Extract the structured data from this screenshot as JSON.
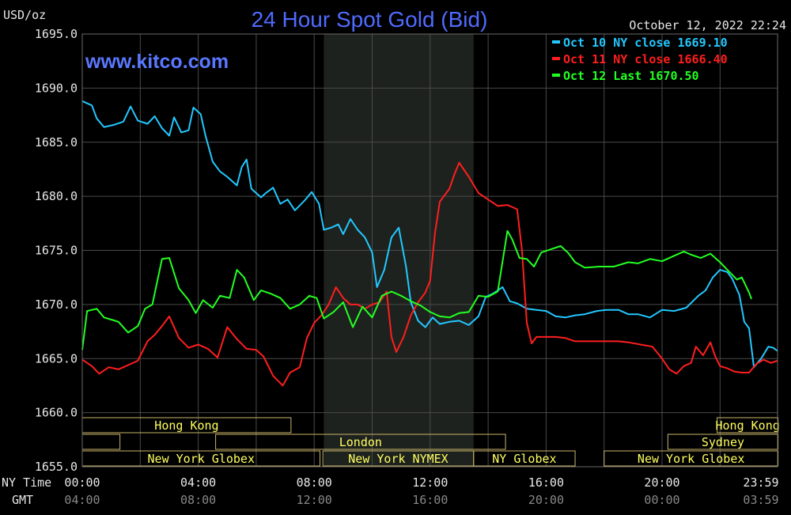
{
  "header": {
    "unit": "USD/oz",
    "title": "24 Hour Spot Gold (Bid)",
    "timestamp": "October 12, 2022 22:24",
    "watermark": "www.kitco.com"
  },
  "colors": {
    "background": "#000000",
    "grid": "#4a4a4a",
    "title": "#4f6bff",
    "watermark": "#5a78ff",
    "text": "#e8e8e8",
    "timezone": "#888888",
    "session_text": "#ffff60",
    "session_border": "#c8b46a",
    "shaded_region": "#1e221e"
  },
  "axes": {
    "row1_label": "NY Time",
    "row2_label": "GMT",
    "ny_ticks": [
      "00:00",
      "04:00",
      "08:00",
      "12:00",
      "16:00",
      "20:00",
      "23:59"
    ],
    "gmt_ticks": [
      "04:00",
      "08:00",
      "12:00",
      "16:00",
      "20:00",
      "00:00",
      "03:59"
    ],
    "y_ticks": [
      "1695.0",
      "1690.0",
      "1685.0",
      "1680.0",
      "1675.0",
      "1670.0",
      "1665.0",
      "1660.0",
      "1655.0"
    ]
  },
  "sessions": [
    {
      "label": "Hong Kong",
      "row": 0,
      "from": 0.0,
      "to": 7.2
    },
    {
      "label": "",
      "row": 1,
      "from": 0.0,
      "to": 1.3
    },
    {
      "label": "London",
      "row": 1,
      "from": 4.6,
      "to": 14.6
    },
    {
      "label": "New York Globex",
      "row": 2,
      "from": 0.0,
      "to": 8.2
    },
    {
      "label": "New York NYMEX",
      "row": 2,
      "from": 8.3,
      "to": 13.5
    },
    {
      "label": "NY Globex",
      "row": 2,
      "from": 13.5,
      "to": 17.0
    },
    {
      "label": "Hong Kong",
      "row": 0,
      "from": 21.9,
      "to": 24.0
    },
    {
      "label": "Sydney",
      "row": 1,
      "from": 20.2,
      "to": 24.0
    },
    {
      "label": "New York Globex",
      "row": 2,
      "from": 18.0,
      "to": 24.0
    }
  ],
  "chart_data": {
    "type": "line",
    "title": "24 Hour Spot Gold (Bid)",
    "ylabel": "USD/oz",
    "xlabel": "NY Time",
    "x_range": [
      "00:00",
      "23:59"
    ],
    "ylim": [
      1655.0,
      1695.0
    ],
    "grid": true,
    "shaded_region": [
      "08:20",
      "13:30"
    ],
    "legend_position": "top-right",
    "series": [
      {
        "name": "Oct 10 NY close 1669.10",
        "color": "#22c8ff",
        "points": [
          [
            "00:00",
            1688.8
          ],
          [
            "00:20",
            1688.4
          ],
          [
            "00:30",
            1687.2
          ],
          [
            "00:45",
            1686.4
          ],
          [
            "01:05",
            1686.6
          ],
          [
            "01:25",
            1686.9
          ],
          [
            "01:40",
            1688.3
          ],
          [
            "01:55",
            1687.0
          ],
          [
            "02:15",
            1686.7
          ],
          [
            "02:30",
            1687.4
          ],
          [
            "02:45",
            1686.3
          ],
          [
            "03:00",
            1685.6
          ],
          [
            "03:10",
            1687.3
          ],
          [
            "03:25",
            1685.9
          ],
          [
            "03:40",
            1686.1
          ],
          [
            "03:50",
            1688.2
          ],
          [
            "04:05",
            1687.6
          ],
          [
            "04:15",
            1685.6
          ],
          [
            "04:30",
            1683.2
          ],
          [
            "04:45",
            1682.3
          ],
          [
            "05:00",
            1681.8
          ],
          [
            "05:20",
            1681.0
          ],
          [
            "05:30",
            1682.7
          ],
          [
            "05:40",
            1683.4
          ],
          [
            "05:50",
            1680.7
          ],
          [
            "06:10",
            1679.9
          ],
          [
            "06:20",
            1680.3
          ],
          [
            "06:35",
            1680.8
          ],
          [
            "06:50",
            1679.3
          ],
          [
            "07:05",
            1679.7
          ],
          [
            "07:20",
            1678.7
          ],
          [
            "07:40",
            1679.6
          ],
          [
            "07:55",
            1680.4
          ],
          [
            "08:10",
            1679.3
          ],
          [
            "08:20",
            1676.9
          ],
          [
            "08:35",
            1677.1
          ],
          [
            "08:50",
            1677.4
          ],
          [
            "09:00",
            1676.5
          ],
          [
            "09:15",
            1677.9
          ],
          [
            "09:30",
            1676.9
          ],
          [
            "09:45",
            1676.2
          ],
          [
            "10:00",
            1674.8
          ],
          [
            "10:10",
            1671.6
          ],
          [
            "10:25",
            1673.2
          ],
          [
            "10:40",
            1676.2
          ],
          [
            "10:55",
            1677.1
          ],
          [
            "11:10",
            1673.5
          ],
          [
            "11:20",
            1670.2
          ],
          [
            "11:35",
            1668.5
          ],
          [
            "11:50",
            1667.9
          ],
          [
            "12:05",
            1668.8
          ],
          [
            "12:20",
            1668.2
          ],
          [
            "12:40",
            1668.4
          ],
          [
            "13:00",
            1668.5
          ],
          [
            "13:20",
            1668.1
          ],
          [
            "13:40",
            1668.9
          ],
          [
            "13:55",
            1670.7
          ],
          [
            "14:10",
            1671.0
          ],
          [
            "14:30",
            1671.6
          ],
          [
            "14:45",
            1670.3
          ],
          [
            "15:00",
            1670.1
          ],
          [
            "15:20",
            1669.6
          ],
          [
            "15:40",
            1669.5
          ],
          [
            "16:00",
            1669.4
          ],
          [
            "16:20",
            1668.9
          ],
          [
            "16:40",
            1668.8
          ],
          [
            "17:00",
            1669.0
          ],
          [
            "17:20",
            1669.1
          ],
          [
            "17:45",
            1669.4
          ],
          [
            "18:05",
            1669.5
          ],
          [
            "18:30",
            1669.5
          ],
          [
            "18:50",
            1669.1
          ],
          [
            "19:10",
            1669.1
          ],
          [
            "19:35",
            1668.8
          ],
          [
            "20:00",
            1669.5
          ],
          [
            "20:25",
            1669.4
          ],
          [
            "20:50",
            1669.7
          ],
          [
            "21:15",
            1670.8
          ],
          [
            "21:30",
            1671.3
          ],
          [
            "21:45",
            1672.5
          ],
          [
            "22:00",
            1673.2
          ],
          [
            "22:15",
            1673.0
          ],
          [
            "22:25",
            1672.4
          ],
          [
            "22:40",
            1670.9
          ],
          [
            "22:50",
            1668.4
          ],
          [
            "23:00",
            1667.8
          ],
          [
            "23:10",
            1664.2
          ],
          [
            "23:25",
            1665.0
          ],
          [
            "23:40",
            1666.1
          ],
          [
            "23:50",
            1666.0
          ],
          [
            "23:59",
            1665.7
          ]
        ]
      },
      {
        "name": "Oct 11 NY close 1666.40",
        "color": "#ff1e1e",
        "points": [
          [
            "00:00",
            1664.9
          ],
          [
            "00:20",
            1664.3
          ],
          [
            "00:35",
            1663.6
          ],
          [
            "00:55",
            1664.2
          ],
          [
            "01:15",
            1664.0
          ],
          [
            "01:35",
            1664.4
          ],
          [
            "01:55",
            1664.8
          ],
          [
            "02:15",
            1666.6
          ],
          [
            "02:30",
            1667.2
          ],
          [
            "02:45",
            1668.0
          ],
          [
            "03:00",
            1668.9
          ],
          [
            "03:20",
            1666.9
          ],
          [
            "03:40",
            1666.0
          ],
          [
            "04:00",
            1666.3
          ],
          [
            "04:20",
            1665.9
          ],
          [
            "04:40",
            1665.1
          ],
          [
            "05:00",
            1667.9
          ],
          [
            "05:20",
            1666.8
          ],
          [
            "05:40",
            1665.9
          ],
          [
            "06:00",
            1665.8
          ],
          [
            "06:15",
            1665.2
          ],
          [
            "06:35",
            1663.4
          ],
          [
            "06:55",
            1662.5
          ],
          [
            "07:10",
            1663.7
          ],
          [
            "07:30",
            1664.2
          ],
          [
            "07:45",
            1666.9
          ],
          [
            "08:00",
            1668.3
          ],
          [
            "08:15",
            1669.0
          ],
          [
            "08:30",
            1670.0
          ],
          [
            "08:45",
            1671.6
          ],
          [
            "09:00",
            1670.6
          ],
          [
            "09:15",
            1670.0
          ],
          [
            "09:30",
            1670.0
          ],
          [
            "09:45",
            1669.6
          ],
          [
            "10:00",
            1670.0
          ],
          [
            "10:15",
            1670.2
          ],
          [
            "10:30",
            1671.2
          ],
          [
            "10:40",
            1667.0
          ],
          [
            "10:50",
            1665.6
          ],
          [
            "11:05",
            1667.0
          ],
          [
            "11:20",
            1669.0
          ],
          [
            "11:35",
            1670.2
          ],
          [
            "11:50",
            1671.1
          ],
          [
            "12:00",
            1672.2
          ],
          [
            "12:10",
            1676.6
          ],
          [
            "12:20",
            1679.5
          ],
          [
            "12:40",
            1680.7
          ],
          [
            "12:50",
            1682.0
          ],
          [
            "13:00",
            1683.1
          ],
          [
            "13:20",
            1681.8
          ],
          [
            "13:40",
            1680.3
          ],
          [
            "14:00",
            1679.7
          ],
          [
            "14:20",
            1679.1
          ],
          [
            "14:40",
            1679.2
          ],
          [
            "15:00",
            1678.8
          ],
          [
            "15:10",
            1675.0
          ],
          [
            "15:20",
            1668.3
          ],
          [
            "15:30",
            1666.4
          ],
          [
            "15:40",
            1667.0
          ],
          [
            "16:00",
            1667.0
          ],
          [
            "16:20",
            1667.0
          ],
          [
            "16:40",
            1666.9
          ],
          [
            "17:00",
            1666.6
          ],
          [
            "17:30",
            1666.6
          ],
          [
            "18:00",
            1666.6
          ],
          [
            "18:30",
            1666.6
          ],
          [
            "18:50",
            1666.5
          ],
          [
            "19:15",
            1666.3
          ],
          [
            "19:40",
            1666.1
          ],
          [
            "20:00",
            1665.0
          ],
          [
            "20:15",
            1664.0
          ],
          [
            "20:30",
            1663.6
          ],
          [
            "20:45",
            1664.3
          ],
          [
            "21:00",
            1664.6
          ],
          [
            "21:10",
            1666.1
          ],
          [
            "21:25",
            1665.3
          ],
          [
            "21:40",
            1666.5
          ],
          [
            "21:50",
            1665.2
          ],
          [
            "22:00",
            1664.3
          ],
          [
            "22:15",
            1664.1
          ],
          [
            "22:30",
            1663.8
          ],
          [
            "22:45",
            1663.7
          ],
          [
            "23:00",
            1663.7
          ],
          [
            "23:15",
            1664.5
          ],
          [
            "23:30",
            1664.9
          ],
          [
            "23:45",
            1664.6
          ],
          [
            "23:59",
            1664.8
          ]
        ]
      },
      {
        "name": "Oct 12 Last 1670.50",
        "color": "#22ff22",
        "points": [
          [
            "00:00",
            1665.8
          ],
          [
            "00:10",
            1669.4
          ],
          [
            "00:30",
            1669.6
          ],
          [
            "00:45",
            1668.8
          ],
          [
            "01:00",
            1668.6
          ],
          [
            "01:15",
            1668.4
          ],
          [
            "01:35",
            1667.4
          ],
          [
            "01:55",
            1668.0
          ],
          [
            "02:10",
            1669.6
          ],
          [
            "02:25",
            1670.0
          ],
          [
            "02:45",
            1674.2
          ],
          [
            "03:00",
            1674.3
          ],
          [
            "03:20",
            1671.5
          ],
          [
            "03:40",
            1670.4
          ],
          [
            "03:55",
            1669.2
          ],
          [
            "04:10",
            1670.4
          ],
          [
            "04:30",
            1669.7
          ],
          [
            "04:45",
            1670.8
          ],
          [
            "05:05",
            1670.6
          ],
          [
            "05:20",
            1673.2
          ],
          [
            "05:35",
            1672.5
          ],
          [
            "05:55",
            1670.4
          ],
          [
            "06:10",
            1671.3
          ],
          [
            "06:30",
            1671.0
          ],
          [
            "06:50",
            1670.6
          ],
          [
            "07:10",
            1669.6
          ],
          [
            "07:30",
            1670.0
          ],
          [
            "07:50",
            1670.8
          ],
          [
            "08:05",
            1670.6
          ],
          [
            "08:20",
            1668.7
          ],
          [
            "08:40",
            1669.3
          ],
          [
            "09:00",
            1670.2
          ],
          [
            "09:20",
            1667.9
          ],
          [
            "09:40",
            1669.8
          ],
          [
            "10:00",
            1668.8
          ],
          [
            "10:20",
            1670.8
          ],
          [
            "10:40",
            1671.2
          ],
          [
            "11:00",
            1670.8
          ],
          [
            "11:20",
            1670.3
          ],
          [
            "11:40",
            1669.9
          ],
          [
            "12:00",
            1669.3
          ],
          [
            "12:20",
            1668.9
          ],
          [
            "12:40",
            1668.8
          ],
          [
            "13:00",
            1669.2
          ],
          [
            "13:20",
            1669.3
          ],
          [
            "13:40",
            1670.8
          ],
          [
            "14:00",
            1670.7
          ],
          [
            "14:20",
            1671.2
          ],
          [
            "14:40",
            1676.8
          ],
          [
            "14:50",
            1676.0
          ],
          [
            "15:05",
            1674.3
          ],
          [
            "15:20",
            1674.2
          ],
          [
            "15:35",
            1673.5
          ],
          [
            "15:50",
            1674.8
          ],
          [
            "16:10",
            1675.1
          ],
          [
            "16:30",
            1675.4
          ],
          [
            "16:45",
            1674.8
          ],
          [
            "17:00",
            1673.9
          ],
          [
            "17:20",
            1673.4
          ],
          [
            "17:50",
            1673.5
          ],
          [
            "18:20",
            1673.5
          ],
          [
            "18:50",
            1673.9
          ],
          [
            "19:10",
            1673.8
          ],
          [
            "19:35",
            1674.2
          ],
          [
            "20:00",
            1674.0
          ],
          [
            "20:25",
            1674.5
          ],
          [
            "20:45",
            1674.9
          ],
          [
            "21:00",
            1674.6
          ],
          [
            "21:20",
            1674.3
          ],
          [
            "21:40",
            1674.7
          ],
          [
            "22:00",
            1673.9
          ],
          [
            "22:15",
            1673.2
          ],
          [
            "22:35",
            1672.3
          ],
          [
            "22:45",
            1672.5
          ],
          [
            "23:00",
            1671.1
          ],
          [
            "23:05",
            1670.5
          ]
        ]
      }
    ]
  }
}
